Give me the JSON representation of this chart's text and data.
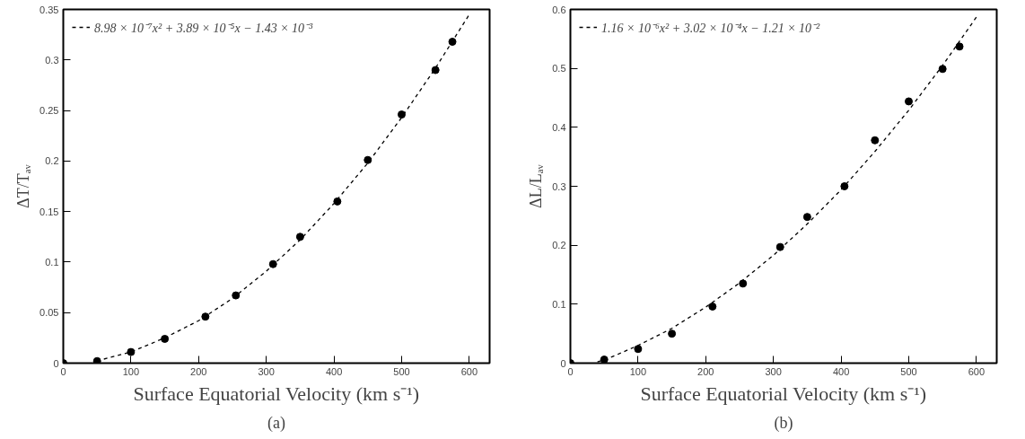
{
  "chart_data": [
    {
      "type": "scatter",
      "xlabel": "Surface Equatorial Velocity (km s⁻¹)",
      "ylabel": "ΔT/Tₐᵥ",
      "annotations": [
        "(a)"
      ],
      "xlim": [
        0,
        630
      ],
      "xticks": [
        0,
        100,
        200,
        300,
        400,
        500,
        600
      ],
      "ylim": [
        0,
        0.35
      ],
      "yticks": [
        0,
        0.05,
        0.1,
        0.15,
        0.2,
        0.25,
        0.3,
        0.35
      ],
      "grid": false,
      "legend": "top left",
      "series": [
        {
          "color": "#000000",
          "marker": "circle",
          "x": [
            0,
            50,
            100,
            150,
            210,
            255,
            310,
            350,
            405,
            450,
            500,
            550,
            575
          ],
          "values": [
            0,
            0.002,
            0.011,
            0.024,
            0.046,
            0.067,
            0.098,
            0.125,
            0.16,
            0.201,
            0.246,
            0.29,
            0.318
          ]
        },
        {
          "type": "line",
          "name": "8.98 × 10⁻⁷x² + 3.89 × 10⁻⁵x − 1.43 × 10⁻³",
          "color": "#000000",
          "line_style": "dashed",
          "x": [
            60,
            100,
            150,
            200,
            250,
            300,
            350,
            400,
            450,
            500,
            550,
            600
          ],
          "values": [
            0.004,
            0.011,
            0.025,
            0.042,
            0.064,
            0.091,
            0.122,
            0.158,
            0.198,
            0.243,
            0.292,
            0.345
          ]
        }
      ]
    },
    {
      "type": "scatter",
      "xlabel": "Surface Equatorial Velocity (km s⁻¹)",
      "ylabel": "ΔL/Lₐᵥ",
      "annotations": [
        "(b)"
      ],
      "xlim": [
        0,
        630
      ],
      "xticks": [
        0,
        100,
        200,
        300,
        400,
        500,
        600
      ],
      "ylim": [
        0,
        0.6
      ],
      "yticks": [
        0,
        0.1,
        0.2,
        0.3,
        0.4,
        0.5,
        0.6
      ],
      "grid": false,
      "legend": "top left",
      "series": [
        {
          "color": "#000000",
          "marker": "circle",
          "x": [
            0,
            50,
            100,
            150,
            210,
            255,
            310,
            350,
            405,
            450,
            500,
            550,
            575
          ],
          "values": [
            0,
            0.006,
            0.024,
            0.05,
            0.096,
            0.135,
            0.197,
            0.248,
            0.3,
            0.378,
            0.444,
            0.499,
            0.537
          ]
        },
        {
          "type": "line",
          "name": "1.16 × 10⁻⁶x² + 3.02 × 10⁻⁴x − 1.21 × 10⁻²",
          "color": "#000000",
          "line_style": "dashed",
          "x": [
            40,
            60,
            100,
            150,
            200,
            250,
            300,
            350,
            400,
            450,
            500,
            550,
            600
          ],
          "values": [
            0.002,
            0.01,
            0.03,
            0.059,
            0.095,
            0.136,
            0.183,
            0.236,
            0.294,
            0.359,
            0.429,
            0.505,
            0.587
          ]
        }
      ]
    }
  ]
}
